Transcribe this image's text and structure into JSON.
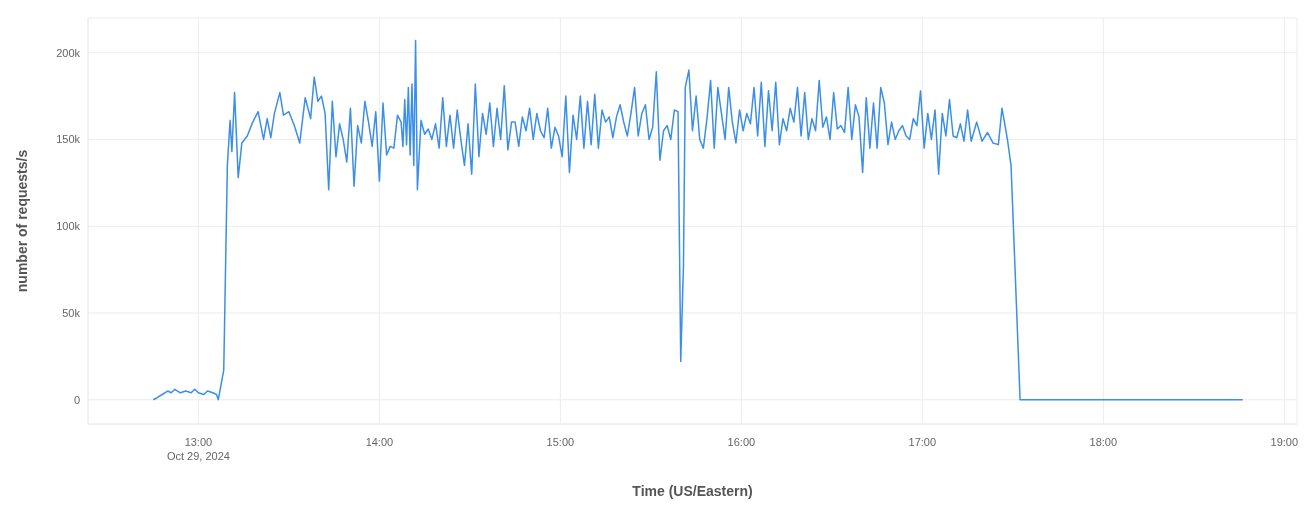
{
  "chart_data": {
    "type": "line",
    "xlabel": "Time (US/Eastern)",
    "ylabel": "number of requests/s",
    "xlim": [
      12.39,
      19.07
    ],
    "ylim": [
      -14000,
      220000
    ],
    "xticks": [
      {
        "value": 13,
        "label": "13:00\nOct 29, 2024"
      },
      {
        "value": 14,
        "label": "14:00"
      },
      {
        "value": 15,
        "label": "15:00"
      },
      {
        "value": 16,
        "label": "16:00"
      },
      {
        "value": 17,
        "label": "17:00"
      },
      {
        "value": 18,
        "label": "18:00"
      },
      {
        "value": 19,
        "label": "19:00"
      }
    ],
    "yticks": [
      0,
      {
        "value": 50000,
        "label": "50k"
      },
      {
        "value": 100000,
        "label": "100k"
      },
      {
        "value": 150000,
        "label": "150k"
      },
      {
        "value": 200000,
        "label": "200k"
      }
    ],
    "grid": true,
    "legend": false,
    "line_style": "solid",
    "x": [
      12.75,
      12.77,
      12.8,
      12.83,
      12.85,
      12.87,
      12.9,
      12.93,
      12.96,
      12.98,
      13.0,
      13.03,
      13.05,
      13.08,
      13.1,
      13.11,
      13.14,
      13.16,
      13.175,
      13.185,
      13.2,
      13.22,
      13.24,
      13.27,
      13.3,
      13.33,
      13.36,
      13.38,
      13.4,
      13.42,
      13.45,
      13.47,
      13.5,
      13.53,
      13.56,
      13.59,
      13.62,
      13.64,
      13.66,
      13.68,
      13.7,
      13.72,
      13.74,
      13.76,
      13.78,
      13.8,
      13.82,
      13.84,
      13.86,
      13.88,
      13.9,
      13.92,
      13.94,
      13.96,
      13.98,
      14.0,
      14.02,
      14.04,
      14.06,
      14.08,
      14.1,
      14.12,
      14.13,
      14.14,
      14.15,
      14.16,
      14.17,
      14.18,
      14.19,
      14.2,
      14.21,
      14.23,
      14.25,
      14.27,
      14.29,
      14.31,
      14.33,
      14.35,
      14.37,
      14.39,
      14.41,
      14.43,
      14.45,
      14.47,
      14.49,
      14.51,
      14.53,
      14.55,
      14.57,
      14.59,
      14.61,
      14.63,
      14.65,
      14.67,
      14.69,
      14.71,
      14.73,
      14.75,
      14.77,
      14.79,
      14.81,
      14.83,
      14.85,
      14.87,
      14.89,
      14.91,
      14.93,
      14.95,
      14.97,
      14.99,
      15.01,
      15.03,
      15.05,
      15.07,
      15.09,
      15.11,
      15.13,
      15.15,
      15.17,
      15.19,
      15.21,
      15.23,
      15.25,
      15.27,
      15.29,
      15.31,
      15.33,
      15.35,
      15.37,
      15.39,
      15.41,
      15.43,
      15.45,
      15.47,
      15.49,
      15.51,
      15.53,
      15.55,
      15.57,
      15.59,
      15.61,
      15.63,
      15.65,
      15.665,
      15.68,
      15.69,
      15.71,
      15.73,
      15.75,
      15.77,
      15.79,
      15.81,
      15.83,
      15.85,
      15.87,
      15.89,
      15.91,
      15.93,
      15.95,
      15.97,
      15.99,
      16.01,
      16.03,
      16.05,
      16.07,
      16.09,
      16.11,
      16.13,
      16.15,
      16.17,
      16.19,
      16.21,
      16.23,
      16.25,
      16.27,
      16.29,
      16.31,
      16.33,
      16.35,
      16.37,
      16.39,
      16.41,
      16.43,
      16.45,
      16.47,
      16.49,
      16.51,
      16.53,
      16.55,
      16.57,
      16.59,
      16.61,
      16.63,
      16.65,
      16.67,
      16.69,
      16.71,
      16.73,
      16.75,
      16.77,
      16.79,
      16.81,
      16.83,
      16.85,
      16.87,
      16.89,
      16.91,
      16.93,
      16.95,
      16.97,
      16.99,
      17.01,
      17.03,
      17.05,
      17.07,
      17.09,
      17.11,
      17.13,
      17.15,
      17.17,
      17.19,
      17.21,
      17.23,
      17.25,
      17.27,
      17.3,
      17.33,
      17.36,
      17.39,
      17.42,
      17.44,
      17.47,
      17.49,
      17.54,
      18.77
    ],
    "series": [
      {
        "color": "#3b8fe8",
        "values": [
          0,
          1000,
          3000,
          5000,
          4000,
          6000,
          4000,
          5000,
          4000,
          6000,
          4000,
          3000,
          5000,
          4000,
          3000,
          0,
          17000,
          135000,
          161000,
          143000,
          177000,
          128000,
          148000,
          152000,
          160000,
          166000,
          150000,
          162000,
          151000,
          165000,
          177000,
          164000,
          166000,
          158000,
          148000,
          174000,
          162000,
          186000,
          172000,
          175000,
          165000,
          121000,
          172000,
          140000,
          159000,
          150000,
          137000,
          168000,
          123000,
          158000,
          148000,
          172000,
          160000,
          146000,
          166000,
          126000,
          171000,
          141000,
          146000,
          145000,
          164000,
          160000,
          146000,
          173000,
          147000,
          180000,
          141000,
          182000,
          135000,
          207000,
          121000,
          161000,
          153000,
          156000,
          150000,
          159000,
          145000,
          174000,
          146000,
          164000,
          145000,
          167000,
          150000,
          135000,
          159000,
          130000,
          182000,
          140000,
          165000,
          153000,
          171000,
          146000,
          168000,
          150000,
          181000,
          144000,
          160000,
          160000,
          146000,
          163000,
          155000,
          168000,
          150000,
          165000,
          155000,
          151000,
          168000,
          145000,
          157000,
          152000,
          140000,
          175000,
          131000,
          164000,
          150000,
          175000,
          145000,
          172000,
          147000,
          176000,
          145000,
          167000,
          160000,
          163000,
          151000,
          163000,
          170000,
          160000,
          152000,
          165000,
          180000,
          152000,
          165000,
          170000,
          150000,
          157000,
          189000,
          138000,
          155000,
          158000,
          150000,
          167000,
          166000,
          22000,
          77000,
          180000,
          190000,
          155000,
          175000,
          150000,
          145000,
          162000,
          184000,
          145000,
          180000,
          165000,
          150000,
          180000,
          160000,
          148000,
          167000,
          155000,
          165000,
          159000,
          180000,
          152000,
          183000,
          146000,
          178000,
          155000,
          183000,
          147000,
          162000,
          155000,
          168000,
          160000,
          180000,
          152000,
          177000,
          150000,
          162000,
          155000,
          184000,
          157000,
          163000,
          150000,
          177000,
          156000,
          158000,
          154000,
          180000,
          150000,
          170000,
          163000,
          131000,
          174000,
          145000,
          171000,
          145000,
          180000,
          171000,
          147000,
          160000,
          150000,
          155000,
          158000,
          152000,
          150000,
          162000,
          158000,
          178000,
          145000,
          165000,
          150000,
          167000,
          130000,
          165000,
          152000,
          173000,
          152000,
          151000,
          159000,
          149000,
          167000,
          149000,
          160000,
          149000,
          154000,
          148000,
          147000,
          168000,
          150000,
          135000,
          0,
          0
        ]
      }
    ]
  }
}
